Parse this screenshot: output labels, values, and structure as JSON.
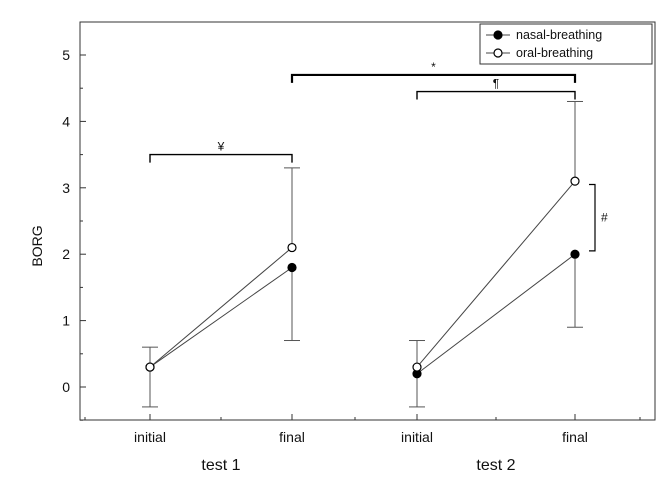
{
  "chart_data": {
    "type": "line",
    "ylabel": "BORG",
    "ylim": [
      -0.5,
      5
    ],
    "yticks": [
      0,
      1,
      2,
      3,
      4,
      5
    ],
    "grid": false,
    "legend_position": "top-right",
    "x": [
      "test 1 initial",
      "test 1 final",
      "test 2 initial",
      "test 2 final"
    ],
    "x_tick_labels": [
      "initial",
      "final",
      "initial",
      "final"
    ],
    "x_group_labels": [
      "test 1",
      "test 2"
    ],
    "series": [
      {
        "name": "nasal-breathing",
        "marker": "filled-circle",
        "color": "#000000",
        "segments": [
          {
            "x": [
              "test 1 initial",
              "test 1 final"
            ],
            "y": [
              0.3,
              1.8
            ]
          },
          {
            "x": [
              "test 2 initial",
              "test 2 final"
            ],
            "y": [
              0.2,
              2.0
            ]
          }
        ],
        "error_bars": [
          {
            "x": "test 1 initial",
            "lower": -0.3
          },
          {
            "x": "test 1 final",
            "lower": 0.7
          },
          {
            "x": "test 2 initial",
            "lower": -0.3
          },
          {
            "x": "test 2 final",
            "lower": 0.9
          }
        ]
      },
      {
        "name": "oral-breathing",
        "marker": "open-circle",
        "color": "#000000",
        "segments": [
          {
            "x": [
              "test 1 initial",
              "test 1 final"
            ],
            "y": [
              0.3,
              2.1
            ]
          },
          {
            "x": [
              "test 2 initial",
              "test 2 final"
            ],
            "y": [
              0.3,
              3.1
            ]
          }
        ],
        "error_bars": [
          {
            "x": "test 1 initial",
            "upper": 0.6
          },
          {
            "x": "test 1 final",
            "upper": 3.3
          },
          {
            "x": "test 2 initial",
            "upper": 0.7
          },
          {
            "x": "test 2 final",
            "upper": 4.3
          }
        ]
      }
    ],
    "annotations": [
      {
        "symbol": "¥",
        "type": "bracket",
        "from": "test 1 initial",
        "to": "test 1 final",
        "y": 3.5
      },
      {
        "symbol": "*",
        "type": "bracket",
        "from": "test 1 final",
        "to": "test 2 final",
        "y": 4.7
      },
      {
        "symbol": "¶",
        "type": "bracket",
        "from": "test 2 initial",
        "to": "test 2 final",
        "y": 4.45
      },
      {
        "symbol": "#",
        "type": "vertical-bracket",
        "at": "test 2 final",
        "from_y": 2.05,
        "to_y": 3.05
      }
    ]
  }
}
